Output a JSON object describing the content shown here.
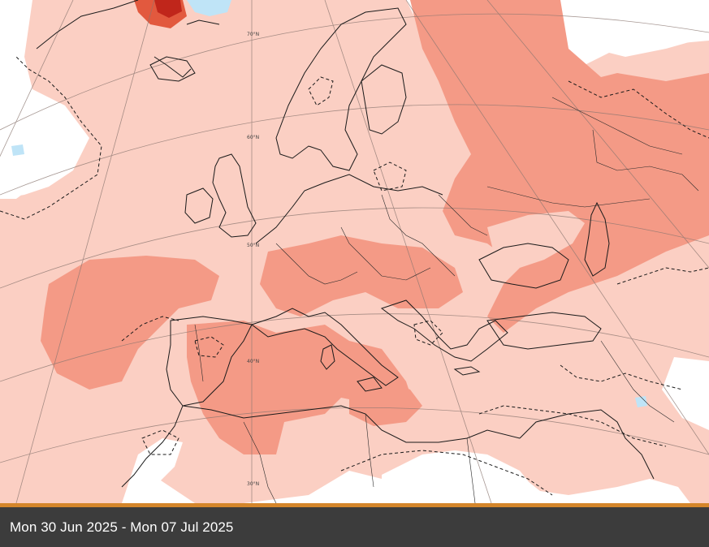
{
  "map": {
    "latitude_labels": [
      "70°N",
      "60°N",
      "50°N",
      "40°N",
      "30°N"
    ],
    "anomaly_colors": {
      "light": "#fbcfc3",
      "medium": "#f49a86",
      "strong": "#e2593e",
      "extreme": "#c0261b",
      "cold": "#bfe4f7",
      "neutral": "#ffffff"
    }
  },
  "footer": {
    "date_range": "Mon 30 Jun 2025 - Mon 07 Jul 2025",
    "accent_color": "#d4862b"
  }
}
